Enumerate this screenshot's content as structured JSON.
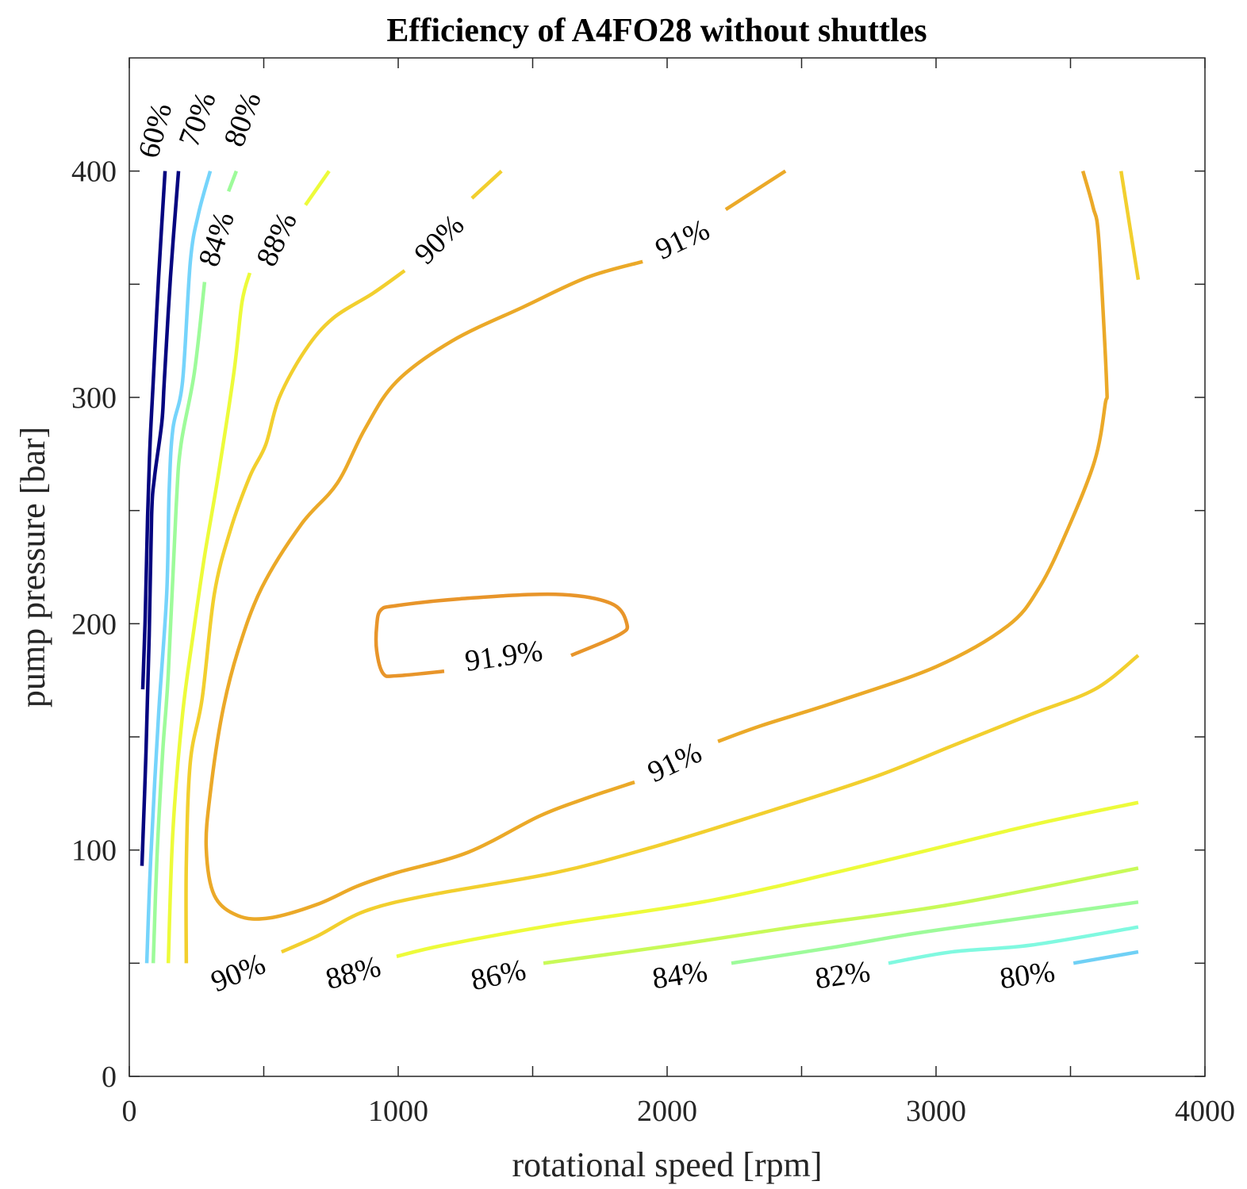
{
  "chart_data": {
    "type": "contour",
    "title": "Efficiency of A4FO28 without shuttles",
    "xlabel": "rotational speed [rpm]",
    "ylabel": "pump pressure [bar]",
    "xlim": [
      0,
      4000
    ],
    "ylim": [
      0,
      450
    ],
    "xticks": [
      0,
      500,
      1000,
      1500,
      2000,
      2500,
      3000,
      3500,
      4000
    ],
    "xtick_labels": [
      "0",
      "",
      "1000",
      "",
      "2000",
      "",
      "3000",
      "",
      "4000"
    ],
    "yticks": [
      0,
      50,
      100,
      150,
      200,
      250,
      300,
      350,
      400
    ],
    "ytick_labels": [
      "0",
      "",
      "100",
      "",
      "200",
      "",
      "300",
      "",
      "400"
    ],
    "grid": false,
    "contours": [
      {
        "level": "60%",
        "color": "#060680",
        "points": [
          [
            50,
            171
          ],
          [
            59,
            202
          ],
          [
            68,
            247
          ],
          [
            77,
            279
          ],
          [
            89,
            307
          ],
          [
            109,
            353
          ],
          [
            133,
            400
          ]
        ]
      },
      {
        "level": "70%",
        "color": "#060680",
        "points": [
          [
            47,
            93
          ],
          [
            62,
            143
          ],
          [
            74,
            195
          ],
          [
            83,
            248
          ],
          [
            94,
            265
          ],
          [
            121,
            289
          ],
          [
            130,
            307
          ],
          [
            153,
            353
          ],
          [
            183,
            400
          ]
        ]
      },
      {
        "level": "80%",
        "color": "#75d4fb",
        "points": [
          [
            65,
            50
          ],
          [
            80,
            97
          ],
          [
            109,
            160
          ],
          [
            139,
            213
          ],
          [
            148,
            258
          ],
          [
            162,
            286
          ],
          [
            198,
            307
          ],
          [
            227,
            360
          ],
          [
            257,
            381
          ],
          [
            301,
            400
          ]
        ]
      },
      {
        "level": "84%",
        "color": "#9dfb9a",
        "points": [
          [
            89,
            50
          ],
          [
            103,
            97
          ],
          [
            124,
            143
          ],
          [
            145,
            178
          ],
          [
            174,
            251
          ],
          [
            192,
            279
          ],
          [
            242,
            311
          ],
          [
            280,
            351
          ]
        ]
      },
      {
        "level": "84%",
        "color": "#9dfb9a",
        "points": [
          [
            369,
            391
          ],
          [
            398,
            400
          ]
        ]
      },
      {
        "level": "88%",
        "color": "#edfb3a",
        "points": [
          [
            145,
            50
          ],
          [
            162,
            108
          ],
          [
            198,
            160
          ],
          [
            242,
            199
          ],
          [
            280,
            230
          ],
          [
            330,
            265
          ],
          [
            389,
            311
          ],
          [
            419,
            342
          ],
          [
            448,
            355
          ]
        ]
      },
      {
        "level": "88%",
        "color": "#edfb3a",
        "points": [
          [
            655,
            385
          ],
          [
            743,
            400
          ]
        ]
      },
      {
        "level": "90%",
        "color": "#f2cf2e",
        "points": [
          [
            212,
            50
          ],
          [
            212,
            94
          ],
          [
            227,
            139
          ],
          [
            271,
            167
          ],
          [
            316,
            213
          ],
          [
            375,
            241
          ],
          [
            448,
            265
          ],
          [
            507,
            279
          ],
          [
            558,
            300
          ],
          [
            655,
            321
          ],
          [
            758,
            335
          ],
          [
            906,
            346
          ],
          [
            1024,
            356
          ]
        ]
      },
      {
        "level": "90%",
        "color": "#f2cf2e",
        "points": [
          [
            1274,
            388
          ],
          [
            1384,
            400
          ]
        ]
      },
      {
        "level": "90%",
        "color": "#f2cf2e",
        "points": [
          [
            566,
            55
          ],
          [
            699,
            62
          ],
          [
            876,
            73
          ],
          [
            1112,
            80
          ],
          [
            1584,
            90
          ],
          [
            1938,
            101
          ],
          [
            2322,
            115
          ],
          [
            2764,
            132
          ],
          [
            3059,
            146
          ],
          [
            3354,
            160
          ],
          [
            3590,
            171
          ],
          [
            3752,
            186
          ]
        ]
      },
      {
        "level": "90%",
        "color": "#f2cf2e",
        "points": [
          [
            3688,
            400
          ],
          [
            3752,
            352
          ]
        ]
      },
      {
        "level": "91%",
        "color": "#eba928",
        "points": [
          [
            2440,
            400
          ],
          [
            2322,
            391
          ],
          [
            2218,
            383
          ]
        ]
      },
      {
        "level": "91%",
        "color": "#eba928",
        "points": [
          [
            1909,
            360
          ],
          [
            1702,
            353
          ],
          [
            1466,
            340
          ],
          [
            1201,
            325
          ],
          [
            994,
            307
          ],
          [
            876,
            286
          ],
          [
            773,
            262
          ],
          [
            640,
            244
          ],
          [
            493,
            216
          ],
          [
            404,
            188
          ],
          [
            345,
            160
          ],
          [
            301,
            125
          ],
          [
            286,
            101
          ],
          [
            316,
            80
          ],
          [
            404,
            71
          ],
          [
            522,
            70
          ],
          [
            699,
            76
          ],
          [
            847,
            84
          ],
          [
            994,
            90
          ],
          [
            1260,
            99
          ],
          [
            1525,
            115
          ],
          [
            1702,
            123
          ],
          [
            1879,
            130
          ]
        ]
      },
      {
        "level": "91%",
        "color": "#eba928",
        "points": [
          [
            2189,
            148
          ],
          [
            2351,
            155
          ],
          [
            2617,
            165
          ],
          [
            3000,
            181
          ],
          [
            3266,
            199
          ],
          [
            3384,
            216
          ],
          [
            3487,
            241
          ],
          [
            3590,
            272
          ],
          [
            3629,
            297
          ],
          [
            3634,
            307
          ],
          [
            3605,
            370
          ],
          [
            3584,
            384
          ],
          [
            3546,
            400
          ]
        ]
      },
      {
        "level": "91.9%",
        "color": "#e8952a",
        "points": [
          [
            1171,
            179
          ],
          [
            994,
            177
          ],
          [
            944,
            178
          ],
          [
            920,
            188
          ],
          [
            920,
            199
          ],
          [
            935,
            206
          ],
          [
            994,
            208
          ],
          [
            1230,
            211
          ],
          [
            1584,
            213
          ],
          [
            1791,
            209
          ],
          [
            1850,
            200
          ],
          [
            1820,
            195
          ],
          [
            1643,
            186
          ]
        ]
      },
      {
        "level": "88%",
        "color": "#edfb3a",
        "points": [
          [
            994,
            53
          ],
          [
            1171,
            58
          ],
          [
            1584,
            67
          ],
          [
            2174,
            78
          ],
          [
            2764,
            94
          ],
          [
            3354,
            111
          ],
          [
            3752,
            121
          ]
        ]
      },
      {
        "level": "86%",
        "color": "#c8fa58",
        "points": [
          [
            1540,
            50
          ],
          [
            2027,
            58
          ],
          [
            2469,
            66
          ],
          [
            3059,
            76
          ],
          [
            3752,
            92
          ]
        ]
      },
      {
        "level": "84%",
        "color": "#9dfb9a",
        "points": [
          [
            2239,
            50
          ],
          [
            2617,
            57
          ],
          [
            2912,
            63
          ],
          [
            3207,
            68
          ],
          [
            3752,
            77
          ]
        ]
      },
      {
        "level": "82%",
        "color": "#80f9e0",
        "points": [
          [
            2823,
            50
          ],
          [
            3059,
            55
          ],
          [
            3354,
            58
          ],
          [
            3752,
            66
          ]
        ]
      },
      {
        "level": "80%",
        "color": "#6fd0f5",
        "points": [
          [
            3511,
            50
          ],
          [
            3752,
            55
          ]
        ]
      }
    ],
    "contour_labels": [
      {
        "text": "60%",
        "x": 94,
        "y": 418
      },
      {
        "text": "70%",
        "x": 251,
        "y": 423
      },
      {
        "text": "80%",
        "x": 419,
        "y": 423
      },
      {
        "text": "84%",
        "x": 322,
        "y": 370
      },
      {
        "text": "88%",
        "x": 546,
        "y": 370
      },
      {
        "text": "90%",
        "x": 1151,
        "y": 370
      },
      {
        "text": "91%",
        "x": 2056,
        "y": 370
      },
      {
        "text": "91.9%",
        "x": 1392,
        "y": 186
      },
      {
        "text": "91%",
        "x": 2027,
        "y": 139
      },
      {
        "text": "90%",
        "x": 404,
        "y": 46
      },
      {
        "text": "88%",
        "x": 832,
        "y": 46
      },
      {
        "text": "86%",
        "x": 1372,
        "y": 45
      },
      {
        "text": "84%",
        "x": 2047,
        "y": 45
      },
      {
        "text": "82%",
        "x": 2652,
        "y": 45
      },
      {
        "text": "80%",
        "x": 3339,
        "y": 45
      }
    ]
  }
}
